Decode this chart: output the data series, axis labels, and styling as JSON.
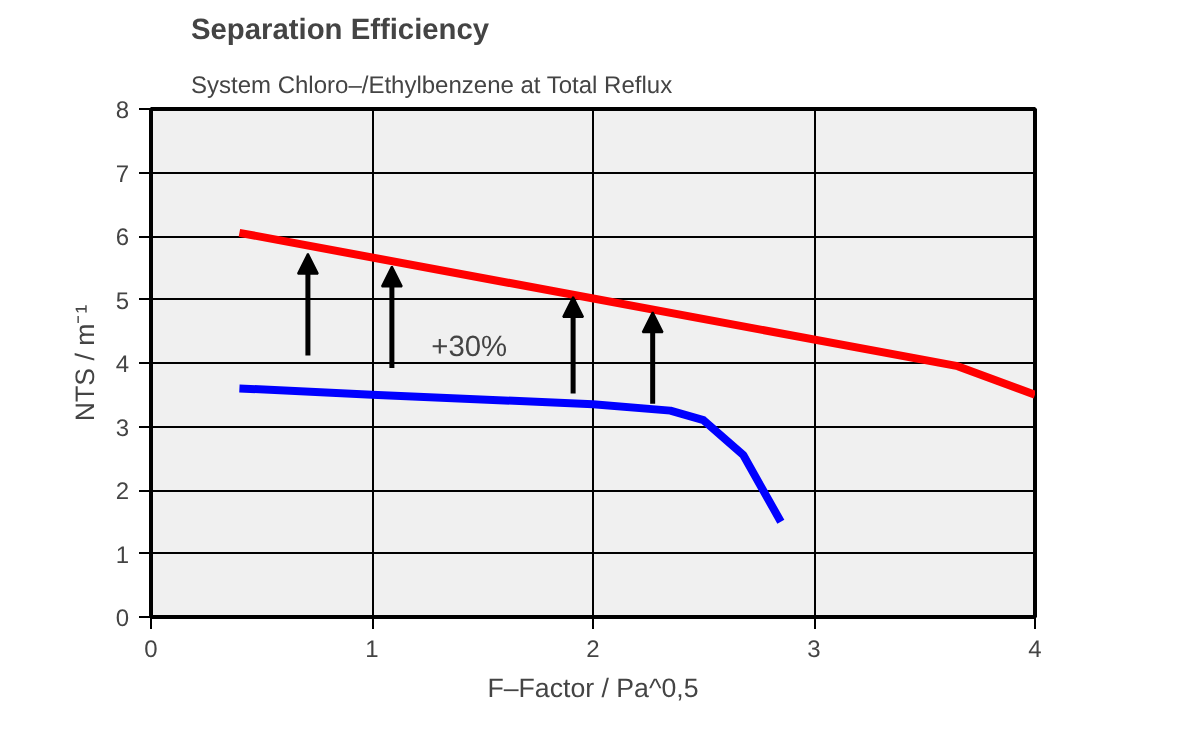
{
  "chart_data": {
    "type": "line",
    "title": "Separation Efficiency",
    "subtitle": "System Chloro–/Ethylbenzene at Total Reflux",
    "xlabel": "F–Factor / Pa^0,5",
    "ylabel": "NTS / m⁻¹",
    "annotations": [
      "+30%"
    ],
    "series": [
      {
        "color": "#0000ff",
        "x": [
          0.4,
          1.0,
          2.0,
          2.35,
          2.5,
          2.68,
          2.85
        ],
        "values": [
          3.6,
          3.5,
          3.35,
          3.25,
          3.1,
          2.55,
          1.5
        ]
      },
      {
        "color": "#ff0000",
        "x": [
          0.4,
          3.65,
          4.0
        ],
        "values": [
          6.05,
          3.95,
          3.5
        ]
      }
    ],
    "xlim": [
      0,
      4
    ],
    "ylim": [
      0,
      8
    ],
    "xticks": [
      0,
      1,
      2,
      3,
      4
    ],
    "yticks": [
      0,
      1,
      2,
      3,
      4,
      5,
      6,
      7,
      8
    ],
    "grid": true,
    "marker": "none",
    "line_style": "solid"
  }
}
